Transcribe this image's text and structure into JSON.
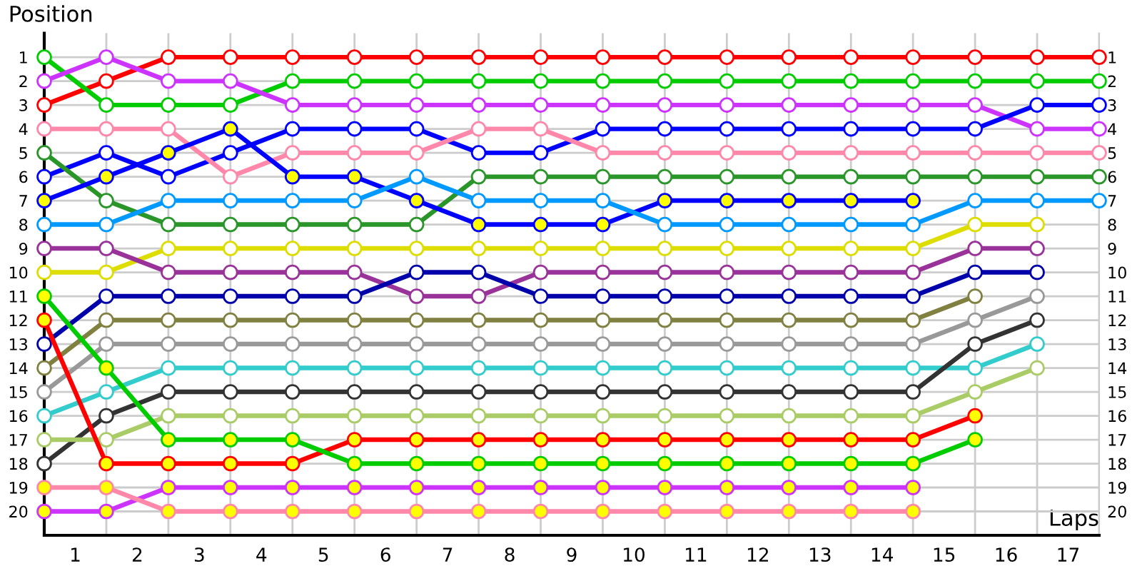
{
  "chart_data": {
    "type": "line",
    "xlabel": "Laps",
    "ylabel": "Position",
    "x": [
      0,
      1,
      2,
      3,
      4,
      5,
      6,
      7,
      8,
      9,
      10,
      11,
      12,
      13,
      14,
      15,
      16,
      17
    ],
    "xlim": [
      0,
      17
    ],
    "xticks": [
      {
        "value": 0,
        "label": null
      },
      {
        "value": 0.5,
        "label": "1"
      },
      {
        "value": 1,
        "label": null
      },
      {
        "value": 1.5,
        "label": "2"
      },
      {
        "value": 2,
        "label": null
      },
      {
        "value": 2.5,
        "label": "3"
      },
      {
        "value": 3,
        "label": null
      },
      {
        "value": 3.5,
        "label": "4"
      },
      {
        "value": 4,
        "label": null
      },
      {
        "value": 4.5,
        "label": "5"
      },
      {
        "value": 5,
        "label": null
      },
      {
        "value": 5.5,
        "label": "6"
      },
      {
        "value": 6,
        "label": null
      },
      {
        "value": 6.5,
        "label": "7"
      },
      {
        "value": 7,
        "label": null
      },
      {
        "value": 7.5,
        "label": "8"
      },
      {
        "value": 8,
        "label": null
      },
      {
        "value": 8.5,
        "label": "9"
      },
      {
        "value": 9,
        "label": null
      },
      {
        "value": 9.5,
        "label": "10"
      },
      {
        "value": 10,
        "label": null
      },
      {
        "value": 10.5,
        "label": "11"
      },
      {
        "value": 11,
        "label": null
      },
      {
        "value": 11.5,
        "label": "12"
      },
      {
        "value": 12,
        "label": null
      },
      {
        "value": 12.5,
        "label": "13"
      },
      {
        "value": 13,
        "label": null
      },
      {
        "value": 13.5,
        "label": "14"
      },
      {
        "value": 14,
        "label": null
      },
      {
        "value": 14.5,
        "label": "15"
      },
      {
        "value": 15,
        "label": null
      },
      {
        "value": 15.5,
        "label": "16"
      },
      {
        "value": 16,
        "label": null
      },
      {
        "value": 16.5,
        "label": "17"
      },
      {
        "value": 17,
        "label": null
      }
    ],
    "ylim": [
      21,
      0
    ],
    "yticks": [
      1,
      2,
      3,
      4,
      5,
      6,
      7,
      8,
      9,
      10,
      11,
      12,
      13,
      14,
      15,
      16,
      17,
      18,
      19,
      20
    ],
    "y2lim": [
      21,
      0
    ],
    "y2ticks": [
      1,
      2,
      3,
      4,
      5,
      6,
      7,
      8,
      9,
      10,
      11,
      12,
      13,
      14,
      15,
      16,
      17,
      18,
      19,
      20
    ],
    "grid": true,
    "marker": "circle",
    "line_style": "solid",
    "series": [
      {
        "color": "#ff0000",
        "values": [
          3,
          2,
          1,
          1,
          1,
          1,
          1,
          1,
          1,
          1,
          1,
          1,
          1,
          1,
          1,
          1,
          1,
          1
        ]
      },
      {
        "color": "#00cc00",
        "values": [
          1,
          3,
          3,
          3,
          2,
          2,
          2,
          2,
          2,
          2,
          2,
          2,
          2,
          2,
          2,
          2,
          2,
          2
        ]
      },
      {
        "color": "#cc33ff",
        "values": [
          2,
          1,
          2,
          2,
          3,
          3,
          3,
          3,
          3,
          3,
          3,
          3,
          3,
          3,
          3,
          3,
          4,
          4
        ]
      },
      {
        "color": "#0000ff",
        "values": [
          6,
          5,
          6,
          5,
          4,
          4,
          4,
          5,
          5,
          4,
          4,
          4,
          4,
          4,
          4,
          4,
          3,
          3
        ]
      },
      {
        "color": "#ff88aa",
        "values": [
          4,
          4,
          4,
          6,
          5,
          5,
          5,
          4,
          4,
          5,
          5,
          5,
          5,
          5,
          5,
          5,
          5,
          5
        ]
      },
      {
        "color": "#2a962a",
        "values": [
          5,
          7,
          8,
          8,
          8,
          8,
          8,
          6,
          6,
          6,
          6,
          6,
          6,
          6,
          6,
          6,
          6,
          6
        ]
      },
      {
        "color": "#0000ff",
        "values": [
          7,
          6,
          5,
          4,
          6,
          6,
          7,
          8,
          8,
          8,
          7,
          7,
          7,
          7,
          7,
          null,
          null,
          null
        ],
        "colors": [
          "#ffff00",
          "#ffff00",
          "#ffff00",
          "#ffff00",
          "#ffff00",
          "#ffff00",
          "#ffff00",
          "#ffff00",
          "#ffff00",
          "#ffff00",
          "#ffff00",
          "#ffff00",
          "#ffff00",
          "#ffff00",
          "#ffff00",
          null,
          null,
          null
        ]
      },
      {
        "color": "#0099ff",
        "values": [
          8,
          8,
          7,
          7,
          7,
          7,
          6,
          7,
          7,
          7,
          8,
          8,
          8,
          8,
          8,
          7,
          7,
          7
        ]
      },
      {
        "color": "#dddd00",
        "values": [
          10,
          10,
          9,
          9,
          9,
          9,
          9,
          9,
          9,
          9,
          9,
          9,
          9,
          9,
          9,
          8,
          8,
          null
        ]
      },
      {
        "color": "#993399",
        "values": [
          9,
          9,
          10,
          10,
          10,
          10,
          11,
          11,
          10,
          10,
          10,
          10,
          10,
          10,
          10,
          9,
          9,
          null
        ]
      },
      {
        "color": "#0000aa",
        "values": [
          13,
          11,
          11,
          11,
          11,
          11,
          10,
          10,
          11,
          11,
          11,
          11,
          11,
          11,
          11,
          10,
          10,
          null
        ]
      },
      {
        "color": "#808040",
        "values": [
          14,
          12,
          12,
          12,
          12,
          12,
          12,
          12,
          12,
          12,
          12,
          12,
          12,
          12,
          12,
          11,
          null,
          null
        ]
      },
      {
        "color": "#999999",
        "values": [
          15,
          13,
          13,
          13,
          13,
          13,
          13,
          13,
          13,
          13,
          13,
          13,
          13,
          13,
          13,
          12,
          11,
          null
        ]
      },
      {
        "color": "#33cccc",
        "values": [
          16,
          15,
          14,
          14,
          14,
          14,
          14,
          14,
          14,
          14,
          14,
          14,
          14,
          14,
          14,
          14,
          13,
          null
        ]
      },
      {
        "color": "#333333",
        "values": [
          18,
          16,
          15,
          15,
          15,
          15,
          15,
          15,
          15,
          15,
          15,
          15,
          15,
          15,
          15,
          13,
          12,
          null
        ]
      },
      {
        "color": "#aacc66",
        "values": [
          17,
          17,
          16,
          16,
          16,
          16,
          16,
          16,
          16,
          16,
          16,
          16,
          16,
          16,
          16,
          15,
          14,
          null
        ]
      },
      {
        "color": "#ff0000",
        "values": [
          12,
          18,
          18,
          18,
          18,
          17,
          17,
          17,
          17,
          17,
          17,
          17,
          17,
          17,
          17,
          16,
          null,
          null
        ],
        "colors": [
          "#ffff00",
          "#ffff00",
          "#ffff00",
          "#ffff00",
          "#ffff00",
          "#ffff00",
          "#ffff00",
          "#ffff00",
          "#ffff00",
          "#ffff00",
          "#ffff00",
          "#ffff00",
          "#ffff00",
          "#ffff00",
          "#ffff00",
          "#ffff00",
          null,
          null
        ]
      },
      {
        "color": "#00cc00",
        "values": [
          11,
          14,
          17,
          17,
          17,
          18,
          18,
          18,
          18,
          18,
          18,
          18,
          18,
          18,
          18,
          17,
          null,
          null
        ],
        "colors": [
          "#ffff00",
          "#ffff00",
          "#ffff00",
          "#ffff00",
          "#ffff00",
          "#ffff00",
          "#ffff00",
          "#ffff00",
          "#ffff00",
          "#ffff00",
          "#ffff00",
          "#ffff00",
          "#ffff00",
          "#ffff00",
          "#ffff00",
          "#ffff00",
          null,
          null
        ]
      },
      {
        "color": "#cc33ff",
        "values": [
          20,
          20,
          19,
          19,
          19,
          19,
          19,
          19,
          19,
          19,
          19,
          19,
          19,
          19,
          19,
          null,
          null,
          null
        ],
        "colors": [
          "#ffff00",
          "#ffff00",
          "#ffff00",
          "#ffff00",
          "#ffff00",
          "#ffff00",
          "#ffff00",
          "#ffff00",
          "#ffff00",
          "#ffff00",
          "#ffff00",
          "#ffff00",
          "#ffff00",
          "#ffff00",
          "#ffff00",
          null,
          null,
          null
        ]
      },
      {
        "color": "#ff88aa",
        "values": [
          19,
          19,
          20,
          20,
          20,
          20,
          20,
          20,
          20,
          20,
          20,
          20,
          20,
          20,
          20,
          null,
          null,
          null
        ],
        "colors": [
          "#ffff00",
          "#ffff00",
          "#ffff00",
          "#ffff00",
          "#ffff00",
          "#ffff00",
          "#ffff00",
          "#ffff00",
          "#ffff00",
          "#ffff00",
          "#ffff00",
          "#ffff00",
          "#ffff00",
          "#ffff00",
          "#ffff00",
          null,
          null,
          null
        ]
      }
    ]
  }
}
